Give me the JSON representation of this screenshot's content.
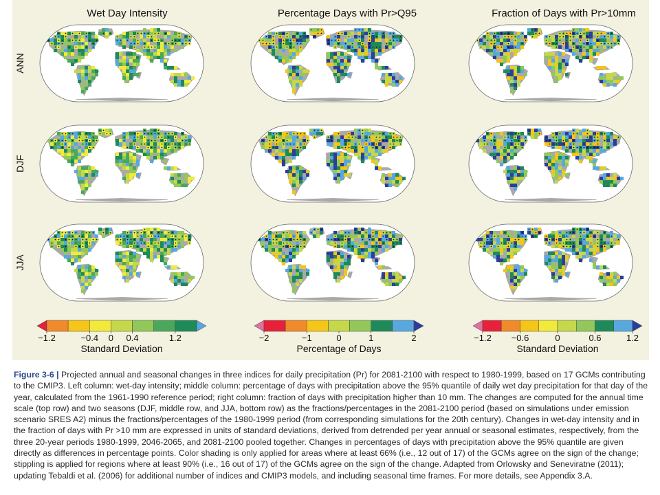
{
  "figure": {
    "column_titles": [
      "Wet Day Intensity",
      "Percentage Days with Pr>Q95",
      "Fraction of Days with Pr>10mm"
    ],
    "row_labels": [
      "ANN",
      "DJF",
      "JJA"
    ],
    "colorbars": [
      {
        "colors": [
          "#e8203a",
          "#f08a2a",
          "#f5c518",
          "#f2ea3a",
          "#c4d84a",
          "#92c85a",
          "#4aa85a",
          "#1e8a5a",
          "#58a8e0"
        ],
        "tick_labels": [
          "−1.2",
          "−0.4",
          "0",
          "0.4",
          "1.2"
        ],
        "tick_positions": [
          1,
          3,
          4,
          5,
          7
        ],
        "label": "Standard Deviation"
      },
      {
        "colors": [
          "#e070a0",
          "#e8203a",
          "#f08a2a",
          "#f5c518",
          "#c4d84a",
          "#92c85a",
          "#1e8a5a",
          "#58a8e0",
          "#2c3e9a"
        ],
        "tick_labels": [
          "−2",
          "−1",
          "0",
          "1",
          "2"
        ],
        "tick_positions": [
          1,
          3,
          4.5,
          6,
          8
        ],
        "label": "Percentage of Days"
      },
      {
        "colors": [
          "#e070a0",
          "#e8203a",
          "#f08a2a",
          "#f5c518",
          "#f2ea3a",
          "#c4d84a",
          "#92c85a",
          "#1e8a5a",
          "#58a8e0",
          "#2c3e9a"
        ],
        "tick_labels": [
          "−1.2",
          "−0.6",
          "0",
          "0.6",
          "1.2"
        ],
        "tick_positions": [
          1,
          3,
          5,
          7,
          9
        ],
        "label": "Standard Deviation"
      }
    ],
    "colors": {
      "panel_background": "#f3f1df",
      "land_nodata": "#a9a9a9",
      "ocean": "#ffffff",
      "caption_accent": "#2a4a8a"
    }
  },
  "caption": {
    "label": "Figure 3-6 |",
    "text": "Projected annual and seasonal changes in three indices for daily precipitation (Pr) for 2081-2100 with respect to 1980-1999, based on 17 GCMs contributing to the CMIP3. Left column: wet-day intensity; middle column: percentage of days with precipitation above the 95% quantile of daily wet day precipitation for that day of the year, calculated from the 1961-1990 reference period; right column: fraction of days with precipitation higher than 10 mm. The changes are computed for the annual time scale (top row) and two seasons (DJF, middle row, and JJA, bottom row) as the fractions/percentages in the 2081-2100 period (based on simulations under emission scenario SRES A2) minus the fractions/percentages of the 1980-1999 period (from corresponding simulations for the 20th century). Changes in wet-day intensity and in the fraction of days with Pr >10 mm are expressed in units of standard deviations, derived from detrended per year annual or seasonal estimates, respectively, from the three 20-year periods 1980-1999, 2046-2065, and 2081-2100 pooled together. Changes in percentages of days with precipitation above the 95% quantile are given directly as differences in percentage points. Color shading is only applied for areas where at least 66% (i.e., 12 out of 17) of the GCMs agree on the sign of the change; stippling is applied for regions where at least 90% (i.e., 16 out of 17) of the GCMs agree on the sign of the change. Adapted from Orlowsky and Seneviratne (2011); updating Tebaldi et al. (2006) for additional number of indices and CMIP3 models, and including seasonal time frames. For more details, see Appendix 3.A."
  }
}
